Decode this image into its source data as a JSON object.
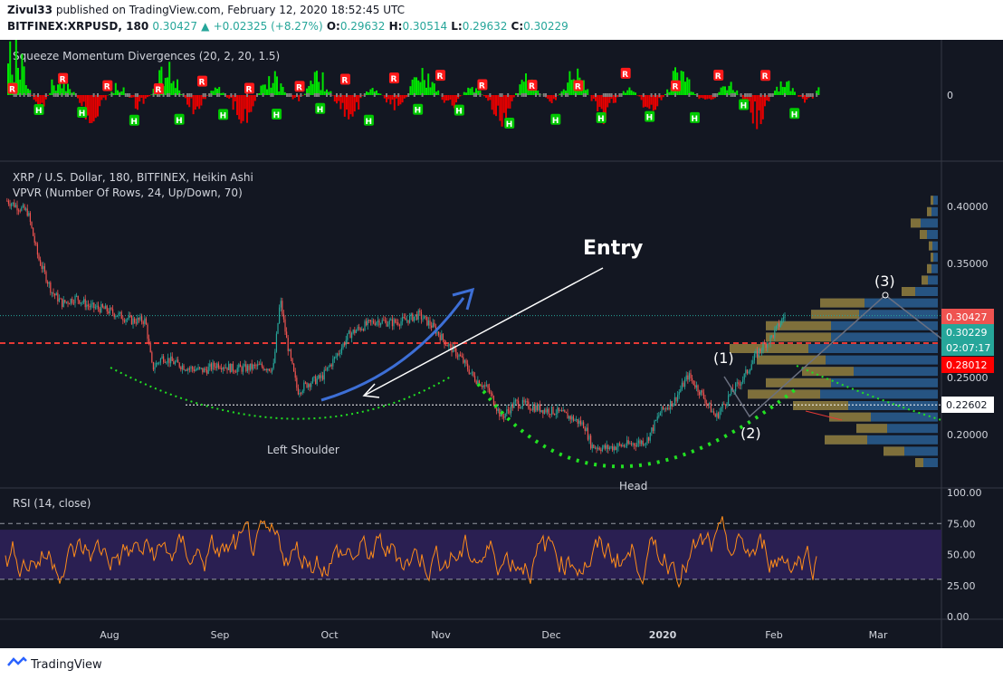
{
  "header": {
    "publisher": "Zivul33",
    "published_line": "published on TradingView.com, February 12, 2020 18:52:45 UTC",
    "symbol": "BITFINEX:XRPUSD, 180",
    "last": "0.30427",
    "change": "+0.02325 (+8.27%)",
    "o_label": "O:",
    "o_value": "0.29632",
    "h_label": "H:",
    "h_value": "0.30514",
    "l_label": "L:",
    "l_value": "0.29632",
    "c_label": "C:",
    "c_value": "0.30229"
  },
  "footer": {
    "brand": "TradingView"
  },
  "chart_data": [
    {
      "type": "bar",
      "panel": "squeeze",
      "title": "Squeeze Momentum Divergences (20, 2, 20, 1.5)",
      "zero_label": "0",
      "marker_labels": [
        "R",
        "H"
      ],
      "colors": {
        "positive": "#00e600",
        "negative": "#e60000",
        "label_r": "#ff1a1a",
        "label_h": "#00c800"
      }
    },
    {
      "type": "line",
      "panel": "price",
      "title": "XRP / U.S. Dollar, 180, BITFINEX, Heikin Ashi",
      "subtitle": "VPVR (Number Of Rows, 24, Up/Down, 70)",
      "x_ticks": [
        "Aug",
        "Sep",
        "Oct",
        "Nov",
        "Dec",
        "2020",
        "Feb",
        "Mar"
      ],
      "y_ticks": [
        "0.40000",
        "0.35000",
        "0.30000",
        "0.25000",
        "0.20000"
      ],
      "ylim": [
        0.17,
        0.41
      ],
      "price_labels": [
        {
          "text": "0.30427",
          "value": 0.30427,
          "color": "#ef5350"
        },
        {
          "text": "0.30229",
          "value": 0.30229,
          "color": "#26a69a"
        },
        {
          "text": "02:07:17",
          "value": 0.295,
          "color": "#26a69a"
        },
        {
          "text": "0.28012",
          "value": 0.28012,
          "color": "#ff0000"
        },
        {
          "text": "0.22602",
          "value": 0.22602,
          "color": "#ffffff"
        }
      ],
      "annotations": [
        "Entry",
        "Left Shoulder",
        "Head",
        "(1)",
        "(2)",
        "(3)"
      ],
      "support_line": 0.28012,
      "neckline": 0.22602,
      "series": [
        {
          "x": [
            "Jul 2",
            "Jul 5",
            "Jul 8",
            "Jul 11",
            "Jul 15",
            "Jul 18",
            "Jul 22",
            "Jul 26",
            "Jul 30",
            "Aug 3",
            "Aug 7",
            "Aug 11",
            "Aug 13",
            "Aug 16",
            "Aug 20",
            "Aug 24",
            "Aug 28",
            "Sep 1",
            "Sep 5",
            "Sep 9",
            "Sep 13",
            "Sep 17",
            "Sep 19",
            "Sep 21",
            "Sep 24",
            "Sep 27",
            "Oct 1",
            "Oct 5",
            "Oct 9",
            "Oct 13",
            "Oct 17",
            "Oct 21",
            "Oct 25",
            "Oct 29",
            "Nov 2",
            "Nov 6",
            "Nov 10",
            "Nov 14",
            "Nov 18",
            "Nov 22",
            "Nov 26",
            "Nov 30",
            "Dec 4",
            "Dec 8",
            "Dec 12",
            "Dec 16",
            "Dec 18",
            "Dec 22",
            "Dec 26",
            "Dec 30",
            "Jan 3",
            "Jan 7",
            "Jan 11",
            "Jan 15",
            "Jan 19",
            "Jan 23",
            "Jan 27",
            "Jan 31",
            "Feb 4",
            "Feb 8",
            "Feb 12"
          ],
          "values": [
            0.405,
            0.4,
            0.395,
            0.355,
            0.325,
            0.315,
            0.32,
            0.312,
            0.31,
            0.305,
            0.3,
            0.3,
            0.258,
            0.268,
            0.262,
            0.258,
            0.256,
            0.262,
            0.258,
            0.258,
            0.26,
            0.258,
            0.318,
            0.28,
            0.238,
            0.245,
            0.25,
            0.268,
            0.288,
            0.295,
            0.3,
            0.298,
            0.3,
            0.305,
            0.295,
            0.28,
            0.268,
            0.25,
            0.24,
            0.215,
            0.228,
            0.225,
            0.222,
            0.22,
            0.215,
            0.208,
            0.19,
            0.188,
            0.19,
            0.192,
            0.195,
            0.22,
            0.23,
            0.252,
            0.235,
            0.215,
            0.235,
            0.25,
            0.272,
            0.285,
            0.305
          ],
          "color": "#ef5350"
        }
      ]
    },
    {
      "type": "line",
      "panel": "rsi",
      "title": "RSI (14, close)",
      "y_ticks": [
        "100.00",
        "75.00",
        "50.00",
        "25.00",
        "0.00"
      ],
      "ylim": [
        0,
        100
      ],
      "bands": [
        30,
        70
      ],
      "color": "#ff8c1a",
      "band_fill": "#2a1f52"
    }
  ]
}
